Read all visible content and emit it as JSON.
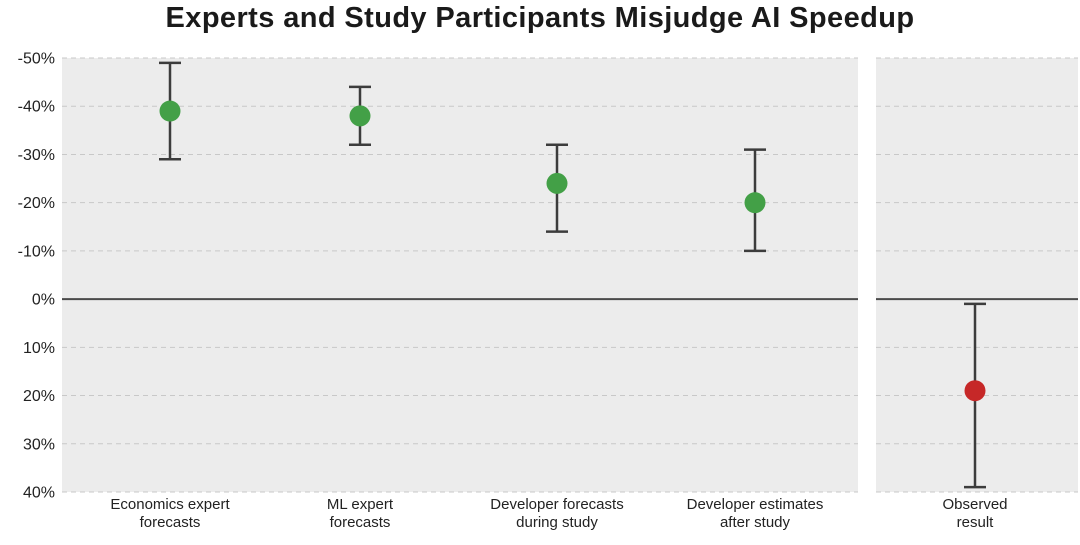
{
  "title": "Experts and Study Participants Misjudge AI Speedup",
  "chart_data": {
    "type": "scatter",
    "title": "Experts and Study Participants Misjudge AI Speedup",
    "xlabel": "",
    "ylabel": "",
    "y_axis": {
      "inverted": true,
      "top_value": -50,
      "bottom_value": 40,
      "zero_line": 0,
      "ticks": [
        -50,
        -40,
        -30,
        -20,
        -10,
        0,
        10,
        20,
        30,
        40
      ],
      "tick_labels": [
        "-50%",
        "-40%",
        "-30%",
        "-20%",
        "-10%",
        "0%",
        "10%",
        "20%",
        "30%",
        "40%"
      ],
      "unit": "%"
    },
    "grid": "horizontal-dashed",
    "legend": "none",
    "series": [
      {
        "label": "Economics expert forecasts",
        "label_lines": [
          "Economics expert",
          "forecasts"
        ],
        "value": -39,
        "ci": [
          -49,
          -29
        ],
        "color": "#43a047",
        "panel": "main"
      },
      {
        "label": "ML expert forecasts",
        "label_lines": [
          "ML expert",
          "forecasts"
        ],
        "value": -38,
        "ci": [
          -44,
          -32
        ],
        "color": "#43a047",
        "panel": "main"
      },
      {
        "label": "Developer forecasts during study",
        "label_lines": [
          "Developer forecasts",
          "during study"
        ],
        "value": -24,
        "ci": [
          -32,
          -14
        ],
        "color": "#43a047",
        "panel": "main"
      },
      {
        "label": "Developer estimates after study",
        "label_lines": [
          "Developer estimates",
          "after study"
        ],
        "value": -20,
        "ci": [
          -31,
          -10
        ],
        "color": "#43a047",
        "panel": "main"
      },
      {
        "label": "Observed result",
        "label_lines": [
          "Observed",
          "result"
        ],
        "value": 19,
        "ci": [
          1,
          39
        ],
        "color": "#c62828",
        "panel": "separate"
      }
    ]
  },
  "colors": {
    "panel_background": "#ececec",
    "gridline": "#c8c8c8",
    "zero_line": "#4a4a4a",
    "error_bar": "#3c3c3c",
    "forecast_point": "#43a047",
    "observed_point": "#c62828",
    "tick_text": "#222222",
    "category_text": "#222222",
    "title_text": "#1a1a1a"
  }
}
